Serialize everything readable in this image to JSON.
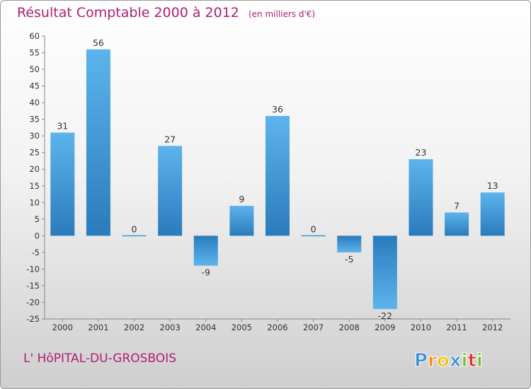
{
  "header": {
    "title": "Résultat Comptable 2000 à 2012",
    "unit": "(en milliers d'€)"
  },
  "footer": {
    "commune": "L' HôPITAL-DU-GROSBOIS",
    "logo_text": "Proxiti"
  },
  "colors": {
    "accent": "#b01e74",
    "bar_light": "#5db4ec",
    "bar_dark": "#2a7bbb"
  },
  "chart_data": {
    "type": "bar",
    "title": "Résultat Comptable 2000 à 2012",
    "subtitle": "(en milliers d'€)",
    "xlabel": "",
    "ylabel": "",
    "categories": [
      "2000",
      "2001",
      "2002",
      "2003",
      "2004",
      "2005",
      "2006",
      "2007",
      "2008",
      "2009",
      "2010",
      "2011",
      "2012"
    ],
    "values": [
      31,
      56,
      0,
      27,
      -9,
      9,
      36,
      0,
      -5,
      -22,
      23,
      7,
      13
    ],
    "ylim": [
      -25,
      60
    ],
    "yticks": [
      -25,
      -20,
      -15,
      -10,
      -5,
      0,
      5,
      10,
      15,
      20,
      25,
      30,
      35,
      40,
      45,
      50,
      55,
      60
    ],
    "grid": false,
    "legend": "none"
  }
}
